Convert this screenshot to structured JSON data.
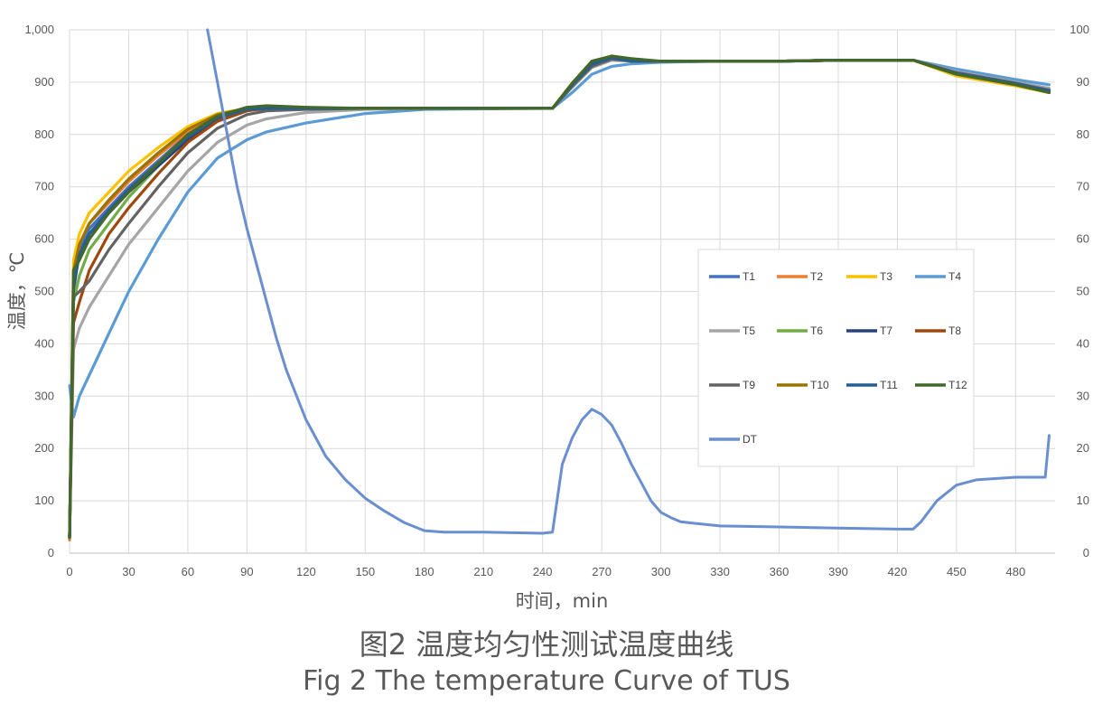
{
  "caption": {
    "line1": "图2 温度均匀性测试温度曲线",
    "line2": "Fig 2  The temperature Curve of TUS"
  },
  "chart_data": {
    "type": "line",
    "title": "",
    "xlabel": "时间，min",
    "ylabel": "温度，℃",
    "xlim": [
      0,
      500
    ],
    "ylim": [
      0,
      1000
    ],
    "y2lim": [
      0,
      100
    ],
    "grid": true,
    "legend_position": "right, inside plot",
    "x_ticks": [
      "0",
      "30",
      "60",
      "90",
      "120",
      "150",
      "180",
      "210",
      "240",
      "270",
      "300",
      "330",
      "360",
      "390",
      "420",
      "450",
      "480"
    ],
    "y_ticks": [
      "0",
      "100",
      "200",
      "300",
      "400",
      "500",
      "600",
      "700",
      "800",
      "900",
      "1,000"
    ],
    "y2_ticks": [
      "0",
      "10",
      "20",
      "30",
      "40",
      "50",
      "60",
      "70",
      "80",
      "90",
      "100"
    ],
    "series": [
      {
        "name": "T1",
        "color": "#4472C4",
        "axis": "left",
        "x": [
          0,
          2,
          5,
          10,
          20,
          30,
          45,
          60,
          75,
          90,
          100,
          120,
          150,
          180,
          245,
          255,
          265,
          275,
          285,
          300,
          330,
          360,
          390,
          428,
          450,
          480,
          497
        ],
        "y": [
          30,
          500,
          580,
          620,
          660,
          700,
          750,
          800,
          835,
          848,
          850,
          850,
          850,
          850,
          850,
          895,
          935,
          948,
          940,
          940,
          940,
          940,
          942,
          942,
          920,
          900,
          888
        ]
      },
      {
        "name": "T2",
        "color": "#ED7D31",
        "axis": "left",
        "x": [
          0,
          2,
          5,
          10,
          20,
          30,
          45,
          60,
          75,
          90,
          100,
          120,
          150,
          180,
          245,
          255,
          265,
          275,
          285,
          300,
          330,
          360,
          390,
          428,
          450,
          480,
          497
        ],
        "y": [
          25,
          520,
          590,
          630,
          670,
          710,
          760,
          805,
          838,
          850,
          852,
          850,
          850,
          850,
          850,
          898,
          938,
          950,
          942,
          940,
          940,
          940,
          942,
          942,
          915,
          895,
          882
        ]
      },
      {
        "name": "T3",
        "color": "#FFC000",
        "axis": "left",
        "x": [
          0,
          2,
          5,
          10,
          20,
          30,
          45,
          60,
          75,
          90,
          100,
          120,
          150,
          180,
          245,
          255,
          265,
          275,
          285,
          300,
          330,
          360,
          390,
          428,
          450,
          480,
          497
        ],
        "y": [
          30,
          560,
          610,
          650,
          690,
          730,
          775,
          815,
          840,
          850,
          852,
          850,
          850,
          850,
          850,
          898,
          938,
          950,
          942,
          940,
          940,
          940,
          942,
          942,
          912,
          893,
          880
        ]
      },
      {
        "name": "T4",
        "color": "#5B9BD5",
        "axis": "left",
        "x": [
          0,
          2,
          5,
          10,
          20,
          30,
          45,
          60,
          75,
          90,
          100,
          120,
          150,
          180,
          245,
          255,
          265,
          275,
          285,
          300,
          330,
          360,
          390,
          428,
          450,
          480,
          497
        ],
        "y": [
          320,
          260,
          300,
          340,
          420,
          500,
          600,
          690,
          755,
          790,
          805,
          822,
          840,
          848,
          850,
          880,
          915,
          930,
          935,
          938,
          940,
          940,
          942,
          942,
          925,
          905,
          895
        ]
      },
      {
        "name": "T5",
        "color": "#A5A5A5",
        "axis": "left",
        "x": [
          0,
          2,
          5,
          10,
          20,
          30,
          45,
          60,
          75,
          90,
          100,
          120,
          150,
          180,
          245,
          255,
          265,
          275,
          285,
          300,
          330,
          360,
          390,
          428,
          450,
          480,
          497
        ],
        "y": [
          30,
          390,
          430,
          470,
          530,
          590,
          660,
          730,
          785,
          818,
          830,
          842,
          848,
          850,
          850,
          890,
          928,
          942,
          940,
          940,
          940,
          940,
          942,
          942,
          920,
          900,
          888
        ]
      },
      {
        "name": "T6",
        "color": "#70AD47",
        "axis": "left",
        "x": [
          0,
          2,
          5,
          10,
          20,
          30,
          45,
          60,
          75,
          90,
          100,
          120,
          150,
          180,
          245,
          255,
          265,
          275,
          285,
          300,
          330,
          360,
          390,
          428,
          450,
          480,
          497
        ],
        "y": [
          30,
          480,
          530,
          580,
          630,
          680,
          740,
          795,
          830,
          848,
          850,
          850,
          850,
          850,
          850,
          895,
          935,
          948,
          940,
          940,
          940,
          940,
          942,
          942,
          918,
          898,
          884
        ]
      },
      {
        "name": "T7",
        "color": "#264478",
        "axis": "left",
        "x": [
          0,
          2,
          5,
          10,
          20,
          30,
          45,
          60,
          75,
          90,
          100,
          120,
          150,
          180,
          245,
          255,
          265,
          275,
          285,
          300,
          330,
          360,
          390,
          428,
          450,
          480,
          497
        ],
        "y": [
          30,
          510,
          570,
          610,
          650,
          690,
          740,
          790,
          830,
          846,
          850,
          850,
          850,
          850,
          850,
          894,
          932,
          946,
          940,
          940,
          940,
          940,
          942,
          942,
          918,
          898,
          884
        ]
      },
      {
        "name": "T8",
        "color": "#9E480E",
        "axis": "left",
        "x": [
          0,
          2,
          5,
          10,
          20,
          30,
          45,
          60,
          75,
          90,
          100,
          120,
          150,
          180,
          245,
          255,
          265,
          275,
          285,
          300,
          330,
          360,
          390,
          428,
          450,
          480,
          497
        ],
        "y": [
          30,
          440,
          480,
          540,
          610,
          660,
          725,
          785,
          825,
          845,
          850,
          850,
          850,
          850,
          850,
          896,
          936,
          948,
          940,
          940,
          940,
          940,
          942,
          942,
          918,
          898,
          884
        ]
      },
      {
        "name": "T9",
        "color": "#636363",
        "axis": "left",
        "x": [
          0,
          2,
          5,
          10,
          20,
          30,
          45,
          60,
          75,
          90,
          100,
          120,
          150,
          180,
          245,
          255,
          265,
          275,
          285,
          300,
          330,
          360,
          390,
          428,
          450,
          480,
          497
        ],
        "y": [
          30,
          490,
          500,
          520,
          580,
          630,
          700,
          765,
          812,
          838,
          845,
          848,
          850,
          850,
          850,
          892,
          930,
          944,
          940,
          940,
          940,
          940,
          942,
          942,
          918,
          898,
          885
        ]
      },
      {
        "name": "T10",
        "color": "#997300",
        "axis": "left",
        "x": [
          0,
          2,
          5,
          10,
          20,
          30,
          45,
          60,
          75,
          90,
          100,
          120,
          150,
          180,
          245,
          255,
          265,
          275,
          285,
          300,
          330,
          360,
          390,
          428,
          450,
          480,
          497
        ],
        "y": [
          30,
          540,
          590,
          630,
          675,
          715,
          765,
          810,
          838,
          850,
          852,
          850,
          850,
          850,
          850,
          897,
          936,
          948,
          940,
          940,
          940,
          940,
          942,
          942,
          916,
          896,
          882
        ]
      },
      {
        "name": "T11",
        "color": "#255E91",
        "axis": "left",
        "x": [
          0,
          2,
          5,
          10,
          20,
          30,
          45,
          60,
          75,
          90,
          100,
          120,
          150,
          180,
          245,
          255,
          265,
          275,
          285,
          300,
          330,
          360,
          390,
          428,
          450,
          480,
          497
        ],
        "y": [
          30,
          520,
          570,
          610,
          655,
          695,
          745,
          795,
          832,
          848,
          850,
          850,
          850,
          850,
          850,
          895,
          934,
          947,
          940,
          940,
          940,
          940,
          942,
          942,
          917,
          897,
          883
        ]
      },
      {
        "name": "T12",
        "color": "#43682B",
        "axis": "left",
        "x": [
          0,
          2,
          5,
          10,
          20,
          30,
          45,
          60,
          75,
          90,
          100,
          120,
          150,
          180,
          245,
          255,
          265,
          275,
          285,
          300,
          330,
          360,
          390,
          428,
          450,
          480,
          497
        ],
        "y": [
          30,
          540,
          560,
          600,
          650,
          690,
          745,
          800,
          835,
          852,
          855,
          852,
          850,
          850,
          850,
          898,
          940,
          950,
          945,
          940,
          940,
          940,
          942,
          942,
          915,
          895,
          880
        ]
      },
      {
        "name": "DT",
        "color": "#6A8FD0",
        "axis": "right",
        "x": [
          70,
          75,
          80,
          85,
          90,
          95,
          100,
          105,
          110,
          120,
          130,
          140,
          150,
          160,
          170,
          180,
          190,
          210,
          240,
          245,
          250,
          255,
          260,
          265,
          270,
          275,
          280,
          285,
          290,
          295,
          300,
          305,
          310,
          320,
          330,
          360,
          390,
          420,
          428,
          432,
          440,
          450,
          460,
          480,
          495,
          497
        ],
        "y": [
          100,
          90,
          80,
          70,
          62,
          55,
          48,
          41,
          35,
          25.5,
          18.5,
          14,
          10.5,
          8,
          5.8,
          4.3,
          4,
          4,
          3.8,
          4,
          17,
          22,
          25.5,
          27.5,
          26.5,
          24.5,
          21,
          17,
          13.5,
          10,
          7.8,
          6.8,
          6,
          5.6,
          5.2,
          5,
          4.8,
          4.6,
          4.6,
          6,
          10,
          13,
          14,
          14.5,
          14.5,
          22.5
        ]
      }
    ]
  }
}
